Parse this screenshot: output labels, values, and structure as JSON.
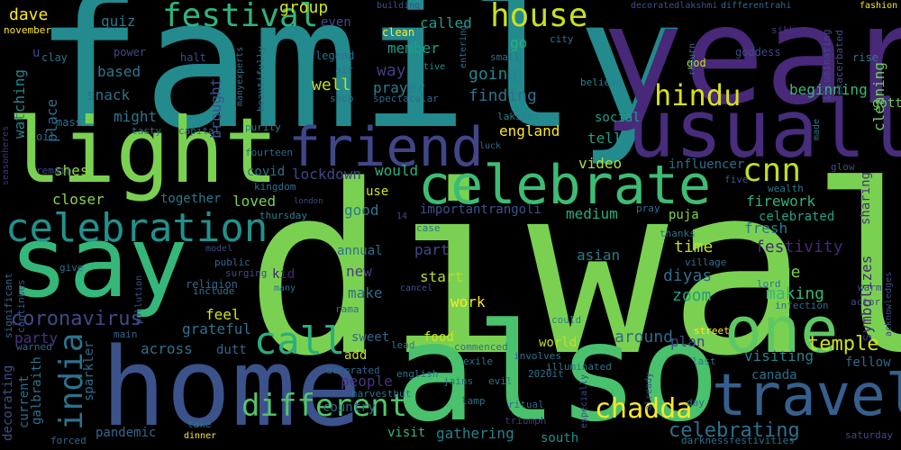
{
  "words": [
    {
      "text": "diwali",
      "color": "#7ad151"
    },
    {
      "text": "family",
      "color": "#238a8d"
    },
    {
      "text": "year",
      "color": "#482878"
    },
    {
      "text": "also",
      "color": "#4ac16d"
    },
    {
      "text": "home",
      "color": "#3b528b"
    },
    {
      "text": "say",
      "color": "#35b779"
    },
    {
      "text": "light",
      "color": "#7ad151"
    },
    {
      "text": "usually",
      "color": "#472d7b"
    },
    {
      "text": "one",
      "color": "#5ec962"
    },
    {
      "text": "travel",
      "color": "#355f8d"
    },
    {
      "text": "friend",
      "color": "#404688"
    },
    {
      "text": "celebrate",
      "color": "#3ebc73"
    },
    {
      "text": "celebration",
      "color": "#21918c"
    },
    {
      "text": "house",
      "color": "#c8e020"
    },
    {
      "text": "festival",
      "color": "#2fb47c"
    },
    {
      "text": "hindu",
      "color": "#d8e219"
    },
    {
      "text": "call",
      "color": "#29af7f"
    },
    {
      "text": "india",
      "color": "#2c728e"
    },
    {
      "text": "cnn",
      "color": "#bddf26"
    },
    {
      "text": "different",
      "color": "#52c569"
    },
    {
      "text": "coronavirus",
      "color": "#3e4a89"
    },
    {
      "text": "celebrating",
      "color": "#2e6f8e"
    },
    {
      "text": "temple",
      "color": "#d0e11c"
    },
    {
      "text": "chadda",
      "color": "#fde725"
    },
    {
      "text": "group",
      "color": "#d2e21b"
    },
    {
      "text": "dave",
      "color": "#fde725"
    },
    {
      "text": "november",
      "color": "#fde725"
    },
    {
      "text": "quiz",
      "color": "#2a788e"
    },
    {
      "text": "called",
      "color": "#1f9e89"
    },
    {
      "text": "even",
      "color": "#3e4a89"
    },
    {
      "text": "go",
      "color": "#26ad81"
    },
    {
      "text": "member",
      "color": "#1f9e89"
    },
    {
      "text": "way",
      "color": "#433e85"
    },
    {
      "text": "going",
      "color": "#25848e"
    },
    {
      "text": "finding",
      "color": "#2c728e"
    },
    {
      "text": "prayer",
      "color": "#277f8e"
    },
    {
      "text": "well",
      "color": "#bddf26"
    },
    {
      "text": "watching",
      "color": "#26828e"
    },
    {
      "text": "based",
      "color": "#2a788e"
    },
    {
      "text": "snack",
      "color": "#2d708e"
    },
    {
      "text": "might",
      "color": "#2a768e"
    },
    {
      "text": "place",
      "color": "#2f6c8e"
    },
    {
      "text": "brought",
      "color": "#3b528b"
    },
    {
      "text": "shes",
      "color": "#8fd744"
    },
    {
      "text": "closer",
      "color": "#86d549"
    },
    {
      "text": "together",
      "color": "#2a788e"
    },
    {
      "text": "covid",
      "color": "#2c728e"
    },
    {
      "text": "lockdown",
      "color": "#404688"
    },
    {
      "text": "would",
      "color": "#2db27d"
    },
    {
      "text": "video",
      "color": "#b5de2b"
    },
    {
      "text": "influencer",
      "color": "#2e6e8e"
    },
    {
      "text": "firework",
      "color": "#2db27d"
    },
    {
      "text": "celebrated",
      "color": "#20a386"
    },
    {
      "text": "puja",
      "color": "#86d549"
    },
    {
      "text": "fresh",
      "color": "#2a788e"
    },
    {
      "text": "time",
      "color": "#bddf26"
    },
    {
      "text": "due",
      "color": "#7ad151"
    },
    {
      "text": "festivity",
      "color": "#482878"
    },
    {
      "text": "making",
      "color": "#35b779"
    },
    {
      "text": "zoom",
      "color": "#1f9e89"
    },
    {
      "text": "diyas",
      "color": "#2e6e8e"
    },
    {
      "text": "good",
      "color": "#2a788e"
    },
    {
      "text": "loved",
      "color": "#7ad151"
    },
    {
      "text": "importantrangoli",
      "color": "#3b528b"
    },
    {
      "text": "medium",
      "color": "#27ad81"
    },
    {
      "text": "england",
      "color": "#fde725"
    },
    {
      "text": "tell",
      "color": "#1f9e89"
    },
    {
      "text": "social",
      "color": "#1f9e89"
    },
    {
      "text": "beginning",
      "color": "#38b977"
    },
    {
      "text": "cleaning",
      "color": "#6ccd5a"
    },
    {
      "text": "gotten",
      "color": "#6ccd5a"
    },
    {
      "text": "annual",
      "color": "#2e6f8e"
    },
    {
      "text": "part",
      "color": "#3e4a89"
    },
    {
      "text": "asian",
      "color": "#2a788e"
    },
    {
      "text": "new",
      "color": "#443a83"
    },
    {
      "text": "start",
      "color": "#b5de2b"
    },
    {
      "text": "make",
      "color": "#2e6e8e"
    },
    {
      "text": "work",
      "color": "#fde725"
    },
    {
      "text": "kid",
      "color": "#481f70"
    },
    {
      "text": "feel",
      "color": "#d8e219"
    },
    {
      "text": "grateful",
      "color": "#2c728e"
    },
    {
      "text": "party",
      "color": "#46337f"
    },
    {
      "text": "across",
      "color": "#2c728e"
    },
    {
      "text": "dutt",
      "color": "#31688e"
    },
    {
      "text": "sweet",
      "color": "#31688e"
    },
    {
      "text": "food",
      "color": "#d2e21b"
    },
    {
      "text": "world",
      "color": "#c2df23"
    },
    {
      "text": "around",
      "color": "#31688e"
    },
    {
      "text": "plan",
      "color": "#3e4a89"
    },
    {
      "text": "people",
      "color": "#46337f"
    },
    {
      "text": "add",
      "color": "#c8e020"
    },
    {
      "text": "country",
      "color": "#31688e"
    },
    {
      "text": "visit",
      "color": "#37b878"
    },
    {
      "text": "gathering",
      "color": "#26828e"
    },
    {
      "text": "south",
      "color": "#21908d"
    },
    {
      "text": "pandemic",
      "color": "#31688e"
    },
    {
      "text": "visiting",
      "color": "#26828e"
    },
    {
      "text": "canada",
      "color": "#2d708e"
    },
    {
      "text": "fellow",
      "color": "#31688e"
    },
    {
      "text": "symbolizes",
      "color": "#482878"
    },
    {
      "text": "sharing",
      "color": "#46337f"
    },
    {
      "text": "galbraith",
      "color": "#2c728e"
    },
    {
      "text": "sparkler",
      "color": "#2e6e8e"
    },
    {
      "text": "current",
      "color": "#2e6e8e"
    },
    {
      "text": "decorating",
      "color": "#3b528b"
    },
    {
      "text": "festive",
      "color": "#228c8d"
    },
    {
      "text": "entering",
      "color": "#2c728e"
    },
    {
      "text": "building",
      "color": "#3b528b"
    },
    {
      "text": "decoratedlakshmi",
      "color": "#3b528b"
    },
    {
      "text": "differentrahi",
      "color": "#31688e"
    },
    {
      "text": "fashion",
      "color": "#fde725"
    },
    {
      "text": "clay",
      "color": "#2c728e"
    },
    {
      "text": "halt",
      "color": "#3e4a89"
    },
    {
      "text": "legend",
      "color": "#2d708e"
    },
    {
      "text": "power",
      "color": "#3e4a89"
    },
    {
      "text": "clean",
      "color": "#fde725"
    },
    {
      "text": "small",
      "color": "#2c728e"
    },
    {
      "text": "city",
      "color": "#2c728e"
    },
    {
      "text": "sikh",
      "color": "#46337f"
    },
    {
      "text": "god",
      "color": "#c2df23"
    },
    {
      "text": "goddess",
      "color": "#3e4a89"
    },
    {
      "text": "illuminating",
      "color": "#3e4a89"
    },
    {
      "text": "exacerbated",
      "color": "#3b528b"
    },
    {
      "text": "rise",
      "color": "#2a788e"
    },
    {
      "text": "return",
      "color": "#2c728e"
    },
    {
      "text": "believe",
      "color": "#26828e"
    },
    {
      "text": "air",
      "color": "#2c728e"
    },
    {
      "text": "shop",
      "color": "#2c728e"
    },
    {
      "text": "beautifully",
      "color": "#2e6e8e"
    },
    {
      "text": "manyexperts",
      "color": "#2c728e"
    },
    {
      "text": "spectacular",
      "color": "#31688e"
    },
    {
      "text": "lakshmi",
      "color": "#26828e"
    },
    {
      "text": "luck",
      "color": "#31688e"
    },
    {
      "text": "purity",
      "color": "#26828e"
    },
    {
      "text": "capital",
      "color": "#31688e"
    },
    {
      "text": "tasty",
      "color": "#2e6e8e"
    },
    {
      "text": "mass",
      "color": "#2c728e"
    },
    {
      "text": "oil",
      "color": "#31688e"
    },
    {
      "text": "remain",
      "color": "#3e4a89"
    },
    {
      "text": "seasonheres",
      "color": "#46337f"
    },
    {
      "text": "made",
      "color": "#2c728e"
    },
    {
      "text": "glow",
      "color": "#3e4a89"
    },
    {
      "text": "five",
      "color": "#3b528b"
    },
    {
      "text": "wealth",
      "color": "#2a788e"
    },
    {
      "text": "fourteen",
      "color": "#31688e"
    },
    {
      "text": "kingdom",
      "color": "#2c728e"
    },
    {
      "text": "london",
      "color": "#3e4a89"
    },
    {
      "text": "thursday",
      "color": "#26828e"
    },
    {
      "text": "14",
      "color": "#3e4a89"
    },
    {
      "text": "case",
      "color": "#2c728e"
    },
    {
      "text": "use",
      "color": "#d2e21b"
    },
    {
      "text": "pray",
      "color": "#2c728e"
    },
    {
      "text": "thanks",
      "color": "#2c728e"
    },
    {
      "text": "village",
      "color": "#2c728e"
    },
    {
      "text": "lord",
      "color": "#2a788e"
    },
    {
      "text": "warm",
      "color": "#3e4a89"
    },
    {
      "text": "actor",
      "color": "#3e4a89"
    },
    {
      "text": "infection",
      "color": "#31688e"
    },
    {
      "text": "acknowledges",
      "color": "#3e4a89"
    },
    {
      "text": "model",
      "color": "#3e4a89"
    },
    {
      "text": "public",
      "color": "#31688e"
    },
    {
      "text": "surging",
      "color": "#3e4a89"
    },
    {
      "text": "religion",
      "color": "#31688e"
    },
    {
      "text": "include",
      "color": "#2c728e"
    },
    {
      "text": "many",
      "color": "#2c728e"
    },
    {
      "text": "give",
      "color": "#2c728e"
    },
    {
      "text": "significant",
      "color": "#31688e"
    },
    {
      "text": "continues",
      "color": "#3b528b"
    },
    {
      "text": "pollution",
      "color": "#3b528b"
    },
    {
      "text": "rama",
      "color": "#2c728e"
    },
    {
      "text": "cancel",
      "color": "#3b528b"
    },
    {
      "text": "main",
      "color": "#31688e"
    },
    {
      "text": "warned",
      "color": "#31688e"
    },
    {
      "text": "could",
      "color": "#26828e"
    },
    {
      "text": "lead",
      "color": "#2c728e"
    },
    {
      "text": "commenced",
      "color": "#2c728e"
    },
    {
      "text": "involves",
      "color": "#2c728e"
    },
    {
      "text": "illuminated",
      "color": "#2c728e"
    },
    {
      "text": "street",
      "color": "#fde725"
    },
    {
      "text": "last",
      "color": "#2c728e"
    },
    {
      "text": "decorated",
      "color": "#31688e"
    },
    {
      "text": "exile",
      "color": "#2c728e"
    },
    {
      "text": "english",
      "color": "#2c728e"
    },
    {
      "text": "evil",
      "color": "#2c728e"
    },
    {
      "text": "jains",
      "color": "#2c728e"
    },
    {
      "text": "2020it",
      "color": "#2c728e"
    },
    {
      "text": "harvestbut",
      "color": "#2c728e"
    },
    {
      "text": "ritual",
      "color": "#31688e"
    },
    {
      "text": "lamp",
      "color": "#2c728e"
    },
    {
      "text": "triumph",
      "color": "#46337f"
    },
    {
      "text": "especially",
      "color": "#3e4a89"
    },
    {
      "text": "already",
      "color": "#3e4a89"
    },
    {
      "text": "day",
      "color": "#2c728e"
    },
    {
      "text": "take",
      "color": "#2c728e"
    },
    {
      "text": "dinner",
      "color": "#fde725"
    },
    {
      "text": "forced",
      "color": "#31688e"
    },
    {
      "text": "darknessfestivities",
      "color": "#2c728e"
    },
    {
      "text": "saturday",
      "color": "#3e4a89"
    },
    {
      "text": "u",
      "color": "#3e4a89"
    }
  ]
}
